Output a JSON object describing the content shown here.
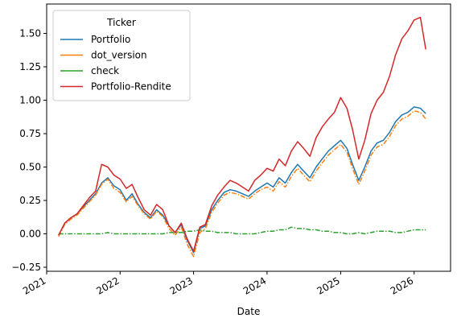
{
  "chart_data": {
    "type": "line",
    "xlabel": "Date",
    "ylabel": "",
    "ylim": [
      -0.28,
      1.72
    ],
    "xlim": [
      "2021-01-01",
      "2026-07-01"
    ],
    "x_ticks": [
      "2021",
      "2022",
      "2023",
      "2024",
      "2025",
      "2026"
    ],
    "y_ticks": [
      -0.25,
      0.0,
      0.25,
      0.5,
      0.75,
      1.0,
      1.25,
      1.5
    ],
    "y_tick_labels": [
      "−0.25",
      "0.00",
      "0.25",
      "0.50",
      "0.75",
      "1.00",
      "1.25",
      "1.50"
    ],
    "grid": false,
    "legend": {
      "title": "Ticker",
      "placement": "top-left",
      "entries": [
        "Portfolio",
        "dot_version",
        "check",
        "Portfolio-Rendite"
      ]
    },
    "x": [
      "2021-03-01",
      "2021-04-01",
      "2021-05-01",
      "2021-06-01",
      "2021-07-01",
      "2021-08-01",
      "2021-09-01",
      "2021-10-01",
      "2021-11-01",
      "2021-12-01",
      "2022-01-01",
      "2022-02-01",
      "2022-03-01",
      "2022-04-01",
      "2022-05-01",
      "2022-06-01",
      "2022-07-01",
      "2022-08-01",
      "2022-09-01",
      "2022-10-01",
      "2022-11-01",
      "2022-12-01",
      "2023-01-01",
      "2023-02-01",
      "2023-03-01",
      "2023-04-01",
      "2023-05-01",
      "2023-06-01",
      "2023-07-01",
      "2023-08-01",
      "2023-09-01",
      "2023-10-01",
      "2023-11-01",
      "2023-12-01",
      "2024-01-01",
      "2024-02-01",
      "2024-03-01",
      "2024-04-01",
      "2024-05-01",
      "2024-06-01",
      "2024-07-01",
      "2024-08-01",
      "2024-09-01",
      "2024-10-01",
      "2024-11-01",
      "2024-12-01",
      "2025-01-01",
      "2025-02-01",
      "2025-03-01",
      "2025-04-01",
      "2025-05-01",
      "2025-06-01",
      "2025-07-01",
      "2025-08-01",
      "2025-09-01",
      "2025-10-01",
      "2025-11-01",
      "2025-12-01",
      "2026-01-01",
      "2026-02-01",
      "2026-02-28"
    ],
    "series": [
      {
        "name": "Portfolio",
        "color": "#1f77b4",
        "style": "solid",
        "values": [
          -0.01,
          0.08,
          0.12,
          0.15,
          0.2,
          0.25,
          0.3,
          0.38,
          0.42,
          0.36,
          0.33,
          0.25,
          0.3,
          0.22,
          0.16,
          0.12,
          0.18,
          0.14,
          0.06,
          0.01,
          0.07,
          -0.05,
          -0.14,
          0.04,
          0.06,
          0.18,
          0.25,
          0.31,
          0.33,
          0.32,
          0.3,
          0.28,
          0.32,
          0.35,
          0.38,
          0.35,
          0.42,
          0.38,
          0.46,
          0.52,
          0.47,
          0.42,
          0.5,
          0.56,
          0.62,
          0.66,
          0.7,
          0.64,
          0.52,
          0.4,
          0.5,
          0.62,
          0.68,
          0.7,
          0.76,
          0.84,
          0.89,
          0.91,
          0.95,
          0.94,
          0.9
        ]
      },
      {
        "name": "dot_version",
        "color": "#ff7f0e",
        "style": "dashdot",
        "values": [
          -0.02,
          0.07,
          0.11,
          0.14,
          0.19,
          0.24,
          0.29,
          0.37,
          0.41,
          0.34,
          0.31,
          0.24,
          0.28,
          0.21,
          0.15,
          0.11,
          0.17,
          0.13,
          0.04,
          -0.01,
          0.05,
          -0.08,
          -0.17,
          0.01,
          0.04,
          0.16,
          0.23,
          0.29,
          0.31,
          0.3,
          0.28,
          0.26,
          0.3,
          0.33,
          0.35,
          0.32,
          0.39,
          0.35,
          0.43,
          0.49,
          0.44,
          0.39,
          0.47,
          0.53,
          0.59,
          0.63,
          0.67,
          0.61,
          0.49,
          0.37,
          0.47,
          0.59,
          0.65,
          0.67,
          0.73,
          0.81,
          0.86,
          0.88,
          0.92,
          0.91,
          0.86
        ]
      },
      {
        "name": "check",
        "color": "#2ca02c",
        "style": "dashdot",
        "values": [
          0.0,
          0.0,
          0.0,
          0.0,
          0.0,
          0.0,
          0.0,
          0.0,
          0.01,
          0.0,
          0.0,
          0.0,
          0.0,
          0.0,
          0.0,
          0.0,
          0.0,
          0.0,
          0.01,
          0.01,
          0.01,
          0.02,
          0.02,
          0.03,
          0.02,
          0.02,
          0.01,
          0.01,
          0.01,
          0.0,
          0.0,
          0.0,
          0.0,
          0.01,
          0.02,
          0.02,
          0.03,
          0.03,
          0.05,
          0.04,
          0.04,
          0.03,
          0.03,
          0.02,
          0.02,
          0.01,
          0.01,
          0.0,
          0.0,
          0.01,
          0.0,
          0.01,
          0.02,
          0.02,
          0.02,
          0.01,
          0.01,
          0.02,
          0.03,
          0.03,
          0.03
        ]
      },
      {
        "name": "Portfolio-Rendite",
        "color": "#d62728",
        "style": "solid",
        "values": [
          -0.01,
          0.08,
          0.12,
          0.15,
          0.21,
          0.27,
          0.32,
          0.52,
          0.5,
          0.44,
          0.41,
          0.34,
          0.37,
          0.27,
          0.18,
          0.14,
          0.22,
          0.18,
          0.06,
          0.01,
          0.08,
          -0.04,
          -0.13,
          0.05,
          0.07,
          0.21,
          0.29,
          0.35,
          0.4,
          0.38,
          0.35,
          0.32,
          0.4,
          0.44,
          0.49,
          0.47,
          0.56,
          0.51,
          0.62,
          0.69,
          0.64,
          0.58,
          0.72,
          0.8,
          0.86,
          0.91,
          1.02,
          0.94,
          0.78,
          0.56,
          0.7,
          0.9,
          1.0,
          1.06,
          1.18,
          1.34,
          1.46,
          1.52,
          1.6,
          1.62,
          1.38
        ]
      }
    ]
  }
}
